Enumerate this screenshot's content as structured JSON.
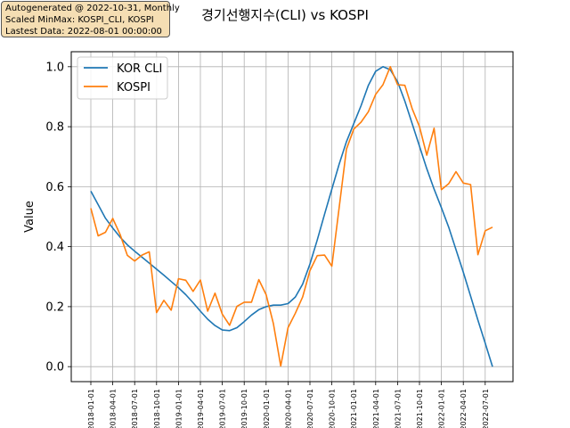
{
  "info_box": {
    "line1": "Autogenerated @ 2022-10-31, Monthly",
    "line2": "Scaled MinMax: KOSPI_CLI, KOSPI",
    "line3": "Lastest Data: 2022-08-01 00:00:00"
  },
  "chart_data": {
    "type": "line",
    "title": "경기선행지수(CLI) vs KOSPI",
    "xlabel": "",
    "ylabel": "Value",
    "ylim": [
      -0.05,
      1.05
    ],
    "yticks": [
      0.0,
      0.2,
      0.4,
      0.6,
      0.8,
      1.0
    ],
    "ytick_labels": [
      "0.0",
      "0.2",
      "0.4",
      "0.6",
      "0.8",
      "1.0"
    ],
    "xtick_labels": [
      "2018-01-01",
      "2018-04-01",
      "2018-07-01",
      "2018-10-01",
      "2019-01-01",
      "2019-04-01",
      "2019-07-01",
      "2019-10-01",
      "2020-01-01",
      "2020-04-01",
      "2020-07-01",
      "2020-10-01",
      "2021-01-01",
      "2021-04-01",
      "2021-07-01",
      "2021-10-01",
      "2022-01-01",
      "2022-04-01",
      "2022-07-01"
    ],
    "grid": true,
    "legend_position": "top-left",
    "x": [
      "2018-01",
      "2018-02",
      "2018-03",
      "2018-04",
      "2018-05",
      "2018-06",
      "2018-07",
      "2018-08",
      "2018-09",
      "2018-10",
      "2018-11",
      "2018-12",
      "2019-01",
      "2019-02",
      "2019-03",
      "2019-04",
      "2019-05",
      "2019-06",
      "2019-07",
      "2019-08",
      "2019-09",
      "2019-10",
      "2019-11",
      "2019-12",
      "2020-01",
      "2020-02",
      "2020-03",
      "2020-04",
      "2020-05",
      "2020-06",
      "2020-07",
      "2020-08",
      "2020-09",
      "2020-10",
      "2020-11",
      "2020-12",
      "2021-01",
      "2021-02",
      "2021-03",
      "2021-04",
      "2021-05",
      "2021-06",
      "2021-07",
      "2021-08",
      "2021-09",
      "2021-10",
      "2021-11",
      "2021-12",
      "2022-01",
      "2022-02",
      "2022-03",
      "2022-04",
      "2022-05",
      "2022-06",
      "2022-07",
      "2022-08"
    ],
    "series": [
      {
        "name": "KOR CLI",
        "color": "#1f77b4",
        "values": [
          0.585,
          0.54,
          0.495,
          0.462,
          0.432,
          0.406,
          0.385,
          0.365,
          0.345,
          0.325,
          0.305,
          0.284,
          0.263,
          0.24,
          0.213,
          0.185,
          0.158,
          0.137,
          0.122,
          0.12,
          0.13,
          0.15,
          0.172,
          0.19,
          0.2,
          0.205,
          0.205,
          0.21,
          0.232,
          0.275,
          0.342,
          0.422,
          0.508,
          0.592,
          0.675,
          0.75,
          0.81,
          0.87,
          0.938,
          0.985,
          1.0,
          0.99,
          0.95,
          0.885,
          0.81,
          0.735,
          0.66,
          0.592,
          0.53,
          0.465,
          0.39,
          0.315,
          0.235,
          0.155,
          0.078,
          0.0
        ]
      },
      {
        "name": "KOSPI",
        "color": "#ff7f0e",
        "values": [
          0.528,
          0.436,
          0.448,
          0.494,
          0.441,
          0.371,
          0.352,
          0.372,
          0.383,
          0.18,
          0.221,
          0.188,
          0.293,
          0.288,
          0.251,
          0.289,
          0.185,
          0.245,
          0.175,
          0.138,
          0.201,
          0.215,
          0.215,
          0.29,
          0.24,
          0.143,
          0.002,
          0.13,
          0.178,
          0.232,
          0.32,
          0.37,
          0.372,
          0.335,
          0.53,
          0.725,
          0.792,
          0.815,
          0.85,
          0.908,
          0.94,
          1.0,
          0.94,
          0.938,
          0.86,
          0.8,
          0.705,
          0.795,
          0.59,
          0.61,
          0.65,
          0.612,
          0.607,
          0.373,
          0.453,
          0.465
        ]
      }
    ]
  }
}
